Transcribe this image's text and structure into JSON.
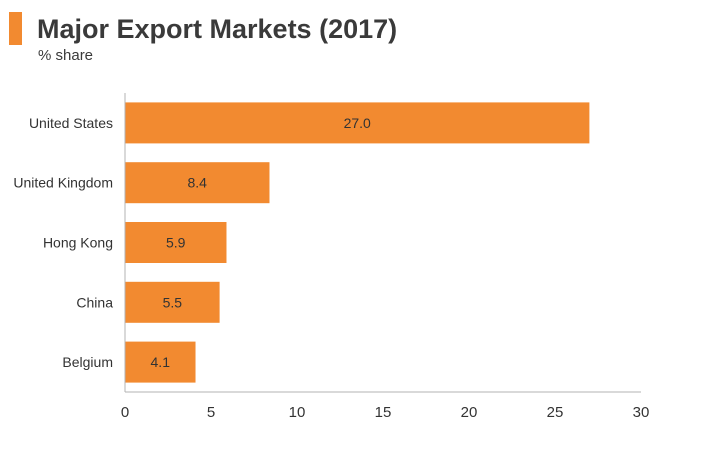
{
  "title": "Major Export Markets (2017)",
  "subtitle": "% share",
  "colors": {
    "bar": "#f28a30",
    "accent": "#f28a30",
    "axis": "#b3b3b3",
    "text": "#333333"
  },
  "chart_data": {
    "type": "bar",
    "orientation": "horizontal",
    "title": "Major Export Markets (2017)",
    "subtitle": "% share",
    "categories": [
      "United States",
      "United Kingdom",
      "Hong Kong",
      "China",
      "Belgium"
    ],
    "values": [
      27.0,
      8.4,
      5.9,
      5.5,
      4.1
    ],
    "data_labels": [
      "27.0",
      "8.4",
      "5.9",
      "5.5",
      "4.1"
    ],
    "xlim": [
      0,
      30
    ],
    "x_ticks": [
      0,
      5,
      10,
      15,
      20,
      25,
      30
    ],
    "grid": false,
    "legend": "none"
  }
}
